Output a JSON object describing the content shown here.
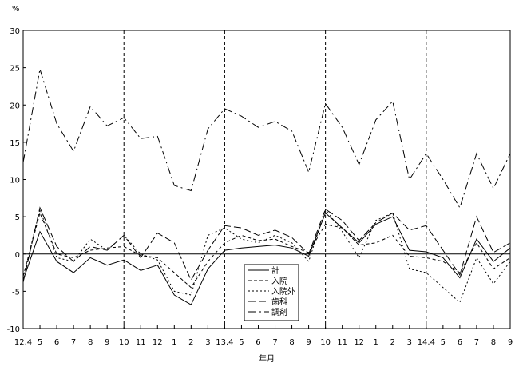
{
  "chart_data": {
    "type": "line",
    "title": "",
    "ylabel": "%",
    "xlabel": "年月",
    "ylim": [
      -10,
      30
    ],
    "yticks": [
      -10,
      -5,
      0,
      5,
      10,
      15,
      20,
      25,
      30
    ],
    "categories": [
      "12.4",
      "5",
      "6",
      "7",
      "8",
      "9",
      "10",
      "11",
      "12",
      "1",
      "2",
      "3",
      "13.4",
      "5",
      "6",
      "7",
      "8",
      "9",
      "10",
      "11",
      "12",
      "1",
      "2",
      "3",
      "14.4",
      "5",
      "6",
      "7",
      "8",
      "9"
    ],
    "year_boundaries": [
      "10",
      "13.4",
      "10",
      "14.4"
    ],
    "grid": false,
    "legend_position": "bottom-center",
    "series": [
      {
        "name": "計",
        "dash": "solid",
        "values": [
          -3.5,
          3.0,
          -1.0,
          -2.5,
          -0.5,
          -1.5,
          -0.8,
          -2.2,
          -1.5,
          -5.5,
          -6.8,
          -2.0,
          0.5,
          0.8,
          1.0,
          1.2,
          0.8,
          -0.3,
          5.5,
          3.5,
          1.5,
          4.0,
          5.0,
          0.5,
          0.3,
          -0.5,
          -3.2,
          2.0,
          -1.0,
          0.8
        ]
      },
      {
        "name": "入院",
        "dash": "short",
        "values": [
          -3.0,
          5.5,
          0.0,
          -0.5,
          0.5,
          0.8,
          1.0,
          -0.2,
          -0.5,
          -2.5,
          -4.5,
          -1.0,
          1.5,
          2.5,
          1.8,
          2.0,
          1.0,
          0.2,
          4.0,
          3.5,
          1.2,
          1.5,
          2.5,
          -0.3,
          -0.5,
          -1.0,
          -2.5,
          1.5,
          -2.0,
          -0.5
        ]
      },
      {
        "name": "入院外",
        "dash": "dot",
        "values": [
          -3.2,
          6.0,
          -0.5,
          -1.0,
          2.0,
          0.5,
          2.5,
          0.0,
          -0.8,
          -5.0,
          -5.5,
          2.5,
          3.5,
          2.0,
          1.5,
          2.5,
          1.5,
          -1.0,
          6.0,
          3.0,
          -0.5,
          4.5,
          5.5,
          -2.0,
          -2.5,
          -4.5,
          -6.5,
          -0.5,
          -4.0,
          -1.0
        ]
      },
      {
        "name": "歯科",
        "dash": "long",
        "values": [
          -3.8,
          6.2,
          1.0,
          -1.0,
          1.0,
          0.5,
          2.5,
          -0.5,
          2.8,
          1.5,
          -3.5,
          0.5,
          3.8,
          3.5,
          2.5,
          3.2,
          2.2,
          0.0,
          6.0,
          4.5,
          1.8,
          4.2,
          5.5,
          3.2,
          3.8,
          0.5,
          -2.8,
          5.0,
          0.2,
          1.5
        ]
      },
      {
        "name": "調剤",
        "dash": "longdot",
        "values": [
          12.3,
          24.8,
          17.5,
          13.8,
          19.8,
          17.2,
          18.3,
          15.5,
          15.8,
          9.2,
          8.5,
          16.8,
          19.5,
          18.5,
          17.0,
          17.8,
          16.5,
          11.0,
          20.2,
          17.0,
          12.0,
          18.0,
          20.5,
          10.0,
          13.5,
          10.0,
          6.2,
          13.5,
          8.8,
          13.5
        ]
      }
    ]
  }
}
